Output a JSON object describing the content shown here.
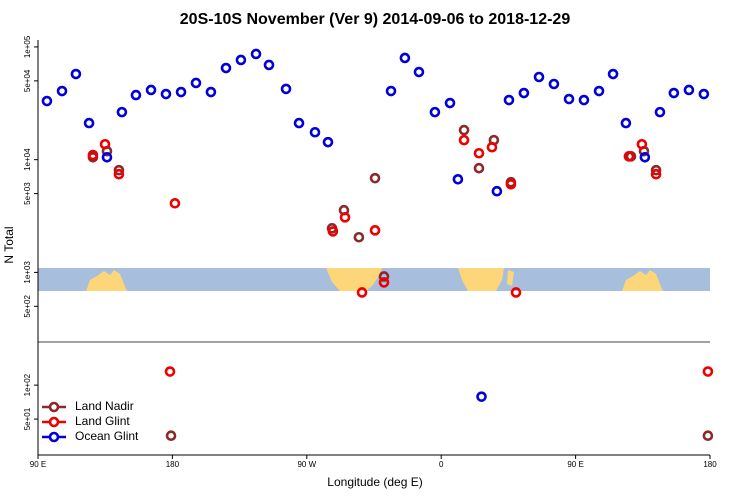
{
  "chart_data": {
    "type": "scatter",
    "title": "20S-10S November (Ver 9)   2014-09-06 to 2018-12-29",
    "x_label": "Longitude (deg E)",
    "y_label": "N Total",
    "log_y": true,
    "legend": "bottomleft",
    "xlim": [
      90,
      540
    ],
    "xticks": [
      {
        "value": 90,
        "label": "90 E"
      },
      {
        "value": 180,
        "label": "180"
      },
      {
        "value": 270,
        "label": "90 W"
      },
      {
        "value": 360,
        "label": "0"
      },
      {
        "value": 450,
        "label": "90 E"
      },
      {
        "value": 540,
        "label": "180"
      }
    ],
    "ylim": [
      24,
      120000
    ],
    "yticks": [
      {
        "value": 100000,
        "label": "1e+05"
      },
      {
        "value": 50000,
        "label": "5e+04"
      },
      {
        "value": 10000,
        "label": "1e+04"
      },
      {
        "value": 5000,
        "label": "5e+03"
      },
      {
        "value": 1000,
        "label": "1e+03"
      },
      {
        "value": 500,
        "label": "5e+02"
      },
      {
        "value": 100,
        "label": "1e+02"
      },
      {
        "value": 50,
        "label": "5e+01"
      }
    ],
    "series": [
      {
        "name": "Land Nadir",
        "color": "#8b2a2a",
        "x": [
          126.8,
          136.2,
          144.2,
          294.9,
          286.9,
          304.9,
          315.7,
          321.7,
          375.3,
          385.3,
          395.3,
          406.7,
          487.1,
          495.8,
          503.9,
          179.1,
          538.6
        ],
        "values": [
          10500,
          11900,
          8070,
          3560,
          2460,
          2050,
          6850,
          920,
          18300,
          8400,
          14900,
          6310,
          10700,
          11900,
          8070,
          35.6,
          35.6
        ]
      },
      {
        "name": "Land Glint",
        "color": "#ee0000",
        "x": [
          126.8,
          134.9,
          144.2,
          181.7,
          287.5,
          295.6,
          315.7,
          307.0,
          321.7,
          375.3,
          385.3,
          394.0,
          406.7,
          410.1,
          485.7,
          494.4,
          503.9,
          178.4,
          538.6
        ],
        "values": [
          11000,
          13700,
          7430,
          4100,
          2310,
          3080,
          2360,
          664,
          815,
          14900,
          11400,
          12900,
          6050,
          664,
          10700,
          13700,
          7430,
          132,
          132
        ]
      },
      {
        "name": "Ocean Glint",
        "color": "#0000dd",
        "x": [
          96.0,
          106.1,
          115.4,
          124.2,
          136.2,
          146.2,
          155.6,
          165.7,
          175.7,
          185.8,
          195.8,
          205.8,
          215.9,
          225.9,
          236.0,
          244.7,
          256.1,
          264.8,
          275.5,
          284.2,
          326.4,
          335.7,
          345.1,
          355.8,
          365.9,
          371.2,
          397.3,
          405.4,
          415.4,
          425.5,
          435.5,
          445.6,
          455.6,
          465.7,
          475.1,
          483.7,
          496.4,
          506.5,
          515.8,
          525.9,
          535.9,
          387.0
        ],
        "values": [
          33100,
          40600,
          57500,
          21100,
          10500,
          26400,
          37400,
          41500,
          38200,
          39800,
          47900,
          39800,
          65000,
          76600,
          86600,
          69200,
          42400,
          21100,
          17500,
          14300,
          40600,
          79800,
          59900,
          26400,
          31800,
          6700,
          5250,
          33800,
          39000,
          54100,
          46900,
          34500,
          33800,
          40600,
          57500,
          21100,
          10500,
          26400,
          39000,
          41500,
          38200,
          79
        ]
      }
    ]
  }
}
